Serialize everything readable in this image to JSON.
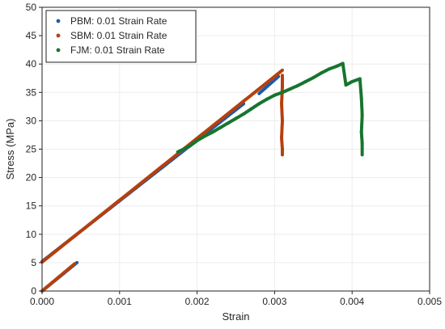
{
  "chart_data": {
    "type": "scatter",
    "title": "",
    "xlabel": "Strain",
    "ylabel": "Stress (MPa)",
    "xlim": [
      0,
      0.005
    ],
    "ylim": [
      0,
      50
    ],
    "xticks": [
      "0.000",
      "0.001",
      "0.002",
      "0.003",
      "0.004",
      "0.005"
    ],
    "yticks": [
      "0",
      "5",
      "10",
      "15",
      "20",
      "25",
      "30",
      "35",
      "40",
      "45",
      "50"
    ],
    "grid": true,
    "legend_position": "top-left",
    "series": [
      {
        "name": "PBM: 0.01 Strain Rate",
        "color": "#1f5aa6",
        "segments": [
          [
            [
              0.0,
              0.0
            ],
            [
              0.00045,
              5.0
            ]
          ],
          [
            [
              0.0,
              5.2
            ],
            [
              0.0026,
              33.0
            ]
          ],
          [
            [
              0.0028,
              34.8
            ],
            [
              0.00305,
              37.8
            ]
          ]
        ]
      },
      {
        "name": "SBM: 0.01 Strain Rate",
        "color": "#b5400e",
        "segments": [
          [
            [
              0.0,
              0.0
            ],
            [
              0.00042,
              4.8
            ]
          ],
          [
            [
              0.0,
              5.1
            ],
            [
              0.0031,
              38.9
            ]
          ],
          [
            [
              0.0031,
              38.0
            ],
            [
              0.0031,
              36.0
            ],
            [
              0.00309,
              33.0
            ],
            [
              0.0031,
              30.0
            ],
            [
              0.00309,
              27.0
            ],
            [
              0.0031,
              25.0
            ],
            [
              0.0031,
              24.0
            ]
          ]
        ]
      },
      {
        "name": "FJM: 0.01 Strain Rate",
        "color": "#17752e",
        "segments": [
          [
            [
              0.00175,
              24.5
            ],
            [
              0.0019,
              25.5
            ],
            [
              0.002,
              26.5
            ],
            [
              0.0021,
              27.3
            ],
            [
              0.0022,
              28.0
            ],
            [
              0.0023,
              28.8
            ],
            [
              0.0024,
              29.6
            ],
            [
              0.0025,
              30.4
            ],
            [
              0.0026,
              31.2
            ],
            [
              0.0027,
              32.1
            ],
            [
              0.0028,
              33.0
            ],
            [
              0.0029,
              33.8
            ],
            [
              0.003,
              34.5
            ],
            [
              0.0031,
              35.0
            ],
            [
              0.0032,
              35.6
            ],
            [
              0.0033,
              36.2
            ],
            [
              0.0034,
              36.9
            ],
            [
              0.0035,
              37.6
            ],
            [
              0.0036,
              38.4
            ],
            [
              0.0037,
              39.1
            ],
            [
              0.0038,
              39.6
            ],
            [
              0.00388,
              40.1
            ],
            [
              0.00392,
              36.3
            ],
            [
              0.004,
              36.9
            ],
            [
              0.0041,
              37.4
            ],
            [
              0.00412,
              34.0
            ],
            [
              0.00413,
              31.0
            ],
            [
              0.00412,
              28.0
            ],
            [
              0.00413,
              26.0
            ],
            [
              0.00413,
              24.0
            ]
          ]
        ]
      }
    ]
  }
}
